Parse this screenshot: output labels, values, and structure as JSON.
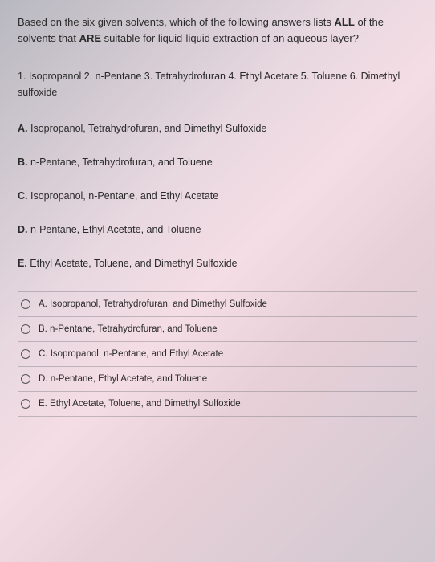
{
  "question": {
    "stem_part1": "Based on the six given solvents, which of the following answers lists ",
    "stem_bold1": "ALL",
    "stem_part2": " of the solvents that ",
    "stem_bold2": "ARE",
    "stem_part3": " suitable for liquid-liquid extraction of an aqueous layer?"
  },
  "solvents": {
    "line": "1. Isopropanol  2. n-Pentane  3. Tetrahydrofuran  4. Ethyl Acetate  5. Toluene  6. Dimethyl sulfoxide"
  },
  "answers": {
    "A": {
      "label": "A.",
      "text": " Isopropanol, Tetrahydrofuran, and Dimethyl Sulfoxide"
    },
    "B": {
      "label": "B.",
      "text": " n-Pentane, Tetrahydrofuran, and Toluene"
    },
    "C": {
      "label": "C.",
      "text": " Isopropanol, n-Pentane, and Ethyl Acetate"
    },
    "D": {
      "label": "D.",
      "text": " n-Pentane, Ethyl Acetate, and Toluene"
    },
    "E": {
      "label": "E.",
      "text": " Ethyl Acetate, Toluene, and Dimethyl Sulfoxide"
    }
  },
  "options": [
    {
      "text": "A. Isopropanol, Tetrahydrofuran, and Dimethyl Sulfoxide"
    },
    {
      "text": "B. n-Pentane, Tetrahydrofuran, and Toluene"
    },
    {
      "text": "C. Isopropanol, n-Pentane, and Ethyl Acetate"
    },
    {
      "text": "D. n-Pentane, Ethyl Acetate, and Toluene"
    },
    {
      "text": "E. Ethyl Acetate, Toluene, and Dimethyl Sulfoxide"
    }
  ],
  "colors": {
    "text": "#2a2a2a",
    "border": "rgba(100,100,110,0.35)",
    "radio_border": "#555"
  },
  "typography": {
    "stem_fontsize": 13,
    "list_fontsize": 12.5,
    "answer_fontsize": 12.5,
    "option_fontsize": 11.5
  }
}
